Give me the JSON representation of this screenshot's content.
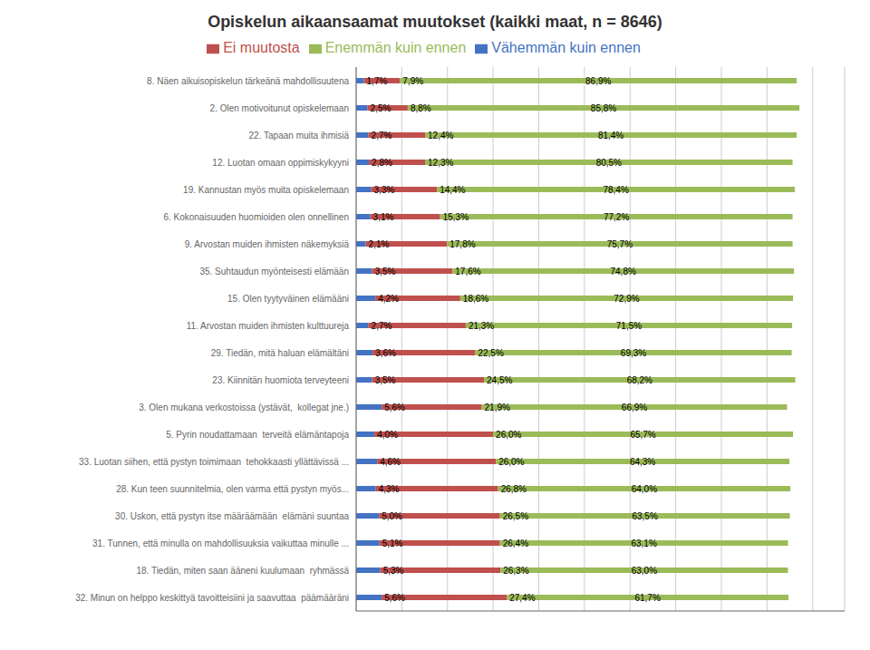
{
  "chart_data": {
    "type": "bar",
    "title": "Opiskelun aikaansaamat muutokset (kaikki maat, n = 8646)",
    "orientation": "horizontal",
    "stacked": true,
    "data_labels": true,
    "grid": true,
    "legend": "top",
    "tick_labels": "y",
    "xlim": [
      0,
      107
    ],
    "xticks": [
      0,
      10,
      20,
      30,
      40,
      50,
      60,
      70,
      80,
      90,
      100
    ],
    "categories": [
      "8. Näen aikuisopiskelun tärkeänä mahdollisuutena",
      "2. Olen motivoitunut opiskelemaan",
      "22. Tapaan muita ihmisiä",
      "12. Luotan omaan oppimiskykyyni",
      "19. Kannustan myös muita opiskelemaan",
      "6. Kokonaisuuden huomioiden olen onnellinen",
      "9. Arvostan muiden ihmisten näkemyksiä",
      "35. Suhtaudun myönteisesti elämään",
      "15. Olen tyytyväinen elämääni",
      "11. Arvostan muiden ihmisten kulttuureja",
      "29. Tiedän, mitä haluan elämältäni",
      "23. Kiinnitän huomiota terveyteeni",
      "3. Olen mukana verkostoissa (ystävät,  kollegat jne.)",
      "5. Pyrin noudattamaan  terveitä elämäntapoja",
      "33. Luotan siihen, että pystyn toimimaan  tehokkaasti yllättävissä ...",
      "28. Kun teen suunnitelmia, olen varma että pystyn myös...",
      "30. Uskon, että pystyn itse määräämään  elämäni suuntaa",
      "31. Tunnen, että minulla on mahdollisuuksia vaikuttaa minulle ...",
      "18. Tiedän, miten saan ääneni kuulumaan  ryhmässä",
      "32. Minun on helppo keskittyä tavoitteisiini ja saavuttaa  päämääräni"
    ],
    "series": [
      {
        "name": "Vähemmän kuin ennen",
        "color": "#4472C4",
        "values": [
          1.7,
          2.5,
          2.7,
          2.8,
          3.3,
          3.1,
          2.1,
          3.5,
          4.2,
          2.7,
          3.6,
          3.5,
          5.6,
          4.0,
          4.6,
          4.3,
          5.0,
          5.1,
          5.3,
          5.6
        ],
        "value_labels": [
          "1,7%",
          "2,5%",
          "2,7%",
          "2,8%",
          "3,3%",
          "3,1%",
          "2,1%",
          "3,5%",
          "4,2%",
          "2,7%",
          "3,6%",
          "3,5%",
          "5,6%",
          "4,0%",
          "4,6%",
          "4,3%",
          "5,0%",
          "5,1%",
          "5,3%",
          "5,6%"
        ]
      },
      {
        "name": "Ei muutosta",
        "color": "#C0504D",
        "values": [
          7.9,
          8.8,
          12.4,
          12.3,
          14.4,
          15.3,
          17.8,
          17.6,
          18.6,
          21.3,
          22.5,
          24.5,
          21.9,
          26.0,
          26.0,
          26.8,
          26.5,
          26.4,
          26.3,
          27.4
        ],
        "value_labels": [
          "7,9%",
          "8,8%",
          "12,4%",
          "12,3%",
          "14,4%",
          "15,3%",
          "17,8%",
          "17,6%",
          "18,6%",
          "21,3%",
          "22,5%",
          "24,5%",
          "21,9%",
          "26,0%",
          "26,0%",
          "26,8%",
          "26,5%",
          "26,4%",
          "26,3%",
          "27,4%"
        ]
      },
      {
        "name": "Enemmän kuin ennen",
        "color": "#9BBB59",
        "values": [
          86.9,
          85.8,
          81.4,
          80.5,
          78.4,
          77.2,
          75.7,
          74.8,
          72.9,
          71.5,
          69.3,
          68.2,
          66.9,
          65.7,
          64.3,
          64.0,
          63.5,
          63.1,
          63.0,
          61.7
        ],
        "value_labels": [
          "86,9%",
          "85,8%",
          "81,4%",
          "80,5%",
          "78,4%",
          "77,2%",
          "75,7%",
          "74,8%",
          "72,9%",
          "71,5%",
          "69,3%",
          "68,2%",
          "66,9%",
          "65,7%",
          "64,3%",
          "64,0%",
          "63,5%",
          "63,1%",
          "63,0%",
          "61,7%"
        ]
      }
    ]
  }
}
